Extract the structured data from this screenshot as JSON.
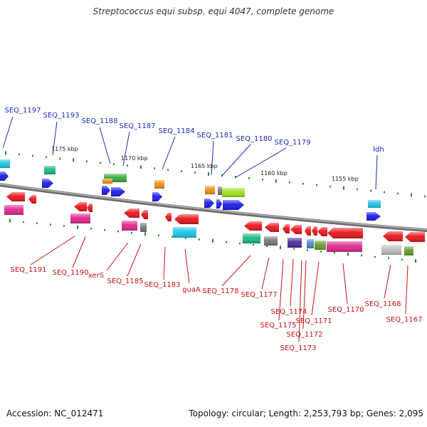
{
  "title": "Streptococcus equi subsp. equi 4047, complete genome",
  "footer": {
    "accession": "Accession: NC_012471",
    "topology": "Topology: circular; Length: 2,253,793 bp; Genes: 2,095"
  },
  "scale_labels": [
    "1175 kbp",
    "1170 kbp",
    "1165 kbp",
    "1160 kbp",
    "1155 kbp"
  ],
  "colors": {
    "forward_label": "#1c2bb8",
    "reverse_label": "#cc1111",
    "backbone": "#8a8a8a",
    "tick": "#2a8a2a"
  },
  "forward_labels": [
    "SEQ_1197",
    "SEQ_1193",
    "SEQ_1188",
    "SEQ_1187",
    "SEQ_1184",
    "SEQ_1181",
    "SEQ_1180",
    "SEQ_1179",
    "ldh"
  ],
  "reverse_labels": [
    "SEQ_1191",
    "SEQ_1190",
    "xerS",
    "SEQ_1185",
    "SEQ_1183",
    "guaA",
    "SEQ_1178",
    "SEQ_1177",
    "SEQ_1174",
    "SEQ_1175",
    "SEQ_1172",
    "SEQ_1173",
    "SEQ_1171",
    "SEQ_1170",
    "SEQ_1168",
    "SEQ_1167"
  ]
}
